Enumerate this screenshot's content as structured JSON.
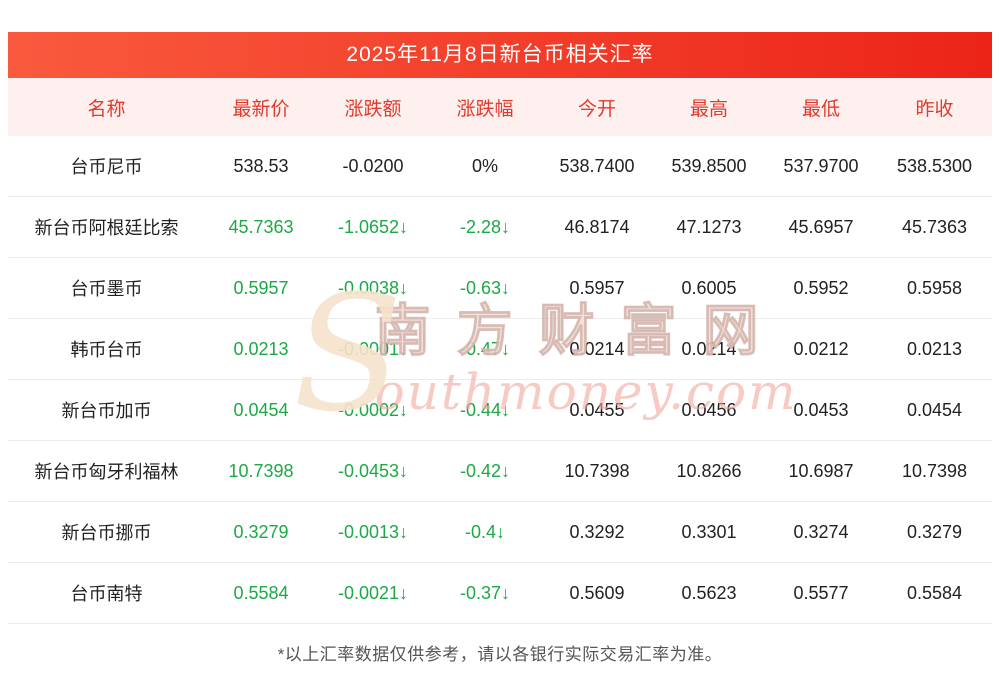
{
  "page": {
    "title": "2025年11月8日新台币相关汇率",
    "footnote": "*以上汇率数据仅供参考，请以各银行实际交易汇率为准。"
  },
  "watermark": {
    "logo": "S",
    "cn": "南方财富网",
    "en": "outhmoney.com"
  },
  "colors": {
    "header_gradient_start": "#f95a3e",
    "header_gradient_end": "#ec2418",
    "header_row_bg": "#fdf0ee",
    "header_row_text": "#e23a2c",
    "down_green": "#1ca946"
  },
  "table": {
    "headers": [
      "名称",
      "最新价",
      "涨跌额",
      "涨跌幅",
      "今开",
      "最高",
      "最低",
      "昨收"
    ],
    "rows": [
      {
        "name": "台币尼币",
        "latest": "538.53",
        "change": "-0.0200",
        "pct": "0%",
        "open": "538.7400",
        "high": "539.8500",
        "low": "537.9700",
        "prev": "538.5300",
        "trend": "flat"
      },
      {
        "name": "新台币阿根廷比索",
        "latest": "45.7363",
        "change": "-1.0652↓",
        "pct": "-2.28↓",
        "open": "46.8174",
        "high": "47.1273",
        "low": "45.6957",
        "prev": "45.7363",
        "trend": "down"
      },
      {
        "name": "台币墨币",
        "latest": "0.5957",
        "change": "-0.0038↓",
        "pct": "-0.63↓",
        "open": "0.5957",
        "high": "0.6005",
        "low": "0.5952",
        "prev": "0.5958",
        "trend": "down"
      },
      {
        "name": "韩币台币",
        "latest": "0.0213",
        "change": "-0.0001↓",
        "pct": "-0.47↓",
        "open": "0.0214",
        "high": "0.0214",
        "low": "0.0212",
        "prev": "0.0213",
        "trend": "down"
      },
      {
        "name": "新台币加币",
        "latest": "0.0454",
        "change": "-0.0002↓",
        "pct": "-0.44↓",
        "open": "0.0455",
        "high": "0.0456",
        "low": "0.0453",
        "prev": "0.0454",
        "trend": "down"
      },
      {
        "name": "新台币匈牙利福林",
        "latest": "10.7398",
        "change": "-0.0453↓",
        "pct": "-0.42↓",
        "open": "10.7398",
        "high": "10.8266",
        "low": "10.6987",
        "prev": "10.7398",
        "trend": "down"
      },
      {
        "name": "新台币挪币",
        "latest": "0.3279",
        "change": "-0.0013↓",
        "pct": "-0.4↓",
        "open": "0.3292",
        "high": "0.3301",
        "low": "0.3274",
        "prev": "0.3279",
        "trend": "down"
      },
      {
        "name": "台币南特",
        "latest": "0.5584",
        "change": "-0.0021↓",
        "pct": "-0.37↓",
        "open": "0.5609",
        "high": "0.5623",
        "low": "0.5577",
        "prev": "0.5584",
        "trend": "down"
      }
    ]
  }
}
